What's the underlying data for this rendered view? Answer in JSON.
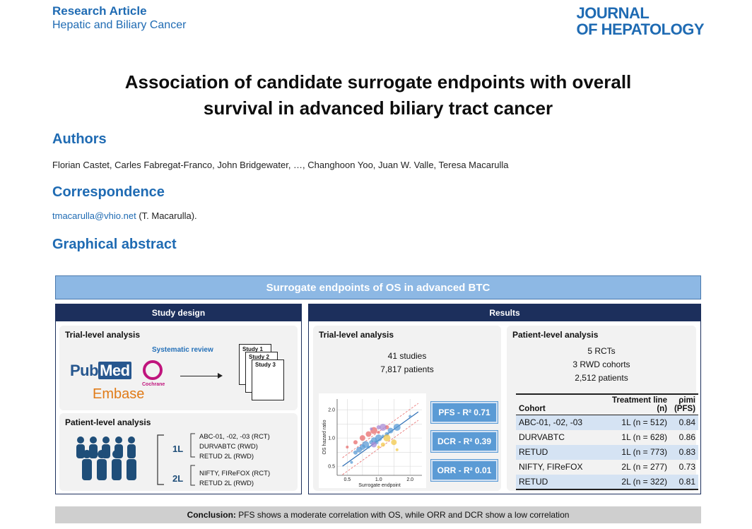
{
  "header": {
    "article_type": "Research Article",
    "section": "Hepatic and Biliary Cancer",
    "journal_line1": "JOURNAL",
    "journal_line2": "OF HEPATOLOGY"
  },
  "title_line1": "Association of candidate surrogate endpoints with overall",
  "title_line2": "survival in advanced biliary tract cancer",
  "authors_heading": "Authors",
  "authors": "Florian Castet, Carles Fabregat-Franco, John Bridgewater, …, Changhoon Yoo, Juan W. Valle, Teresa Macarulla",
  "correspondence_heading": "Correspondence",
  "correspondence_email": "tmacarulla@vhio.net",
  "correspondence_name": " (T. Macarulla).",
  "graphical_abstract_heading": "Graphical abstract",
  "ga": {
    "banner": "Surrogate endpoints of OS in advanced BTC",
    "study_design": {
      "header": "Study design",
      "trial_title": "Trial-level analysis",
      "systematic_review": "Systematic review",
      "pubmed_pub": "Pub",
      "pubmed_med": "Med",
      "cochrane": "Cochrane",
      "embase": "Embase",
      "study_docs": [
        "Study 1",
        "Study 2",
        "Study 3"
      ],
      "patient_title": "Patient-level analysis",
      "line_1l": "1L",
      "line_2l": "2L",
      "cohorts_1l": [
        "ABC-01, -02, -03 (RCT)",
        "DURVABTC (RWD)",
        "RETUD 2L (RWD)"
      ],
      "cohorts_2l": [
        "NIFTY, FIReFOX (RCT)",
        "RETUD 2L (RWD)"
      ]
    },
    "results": {
      "header": "Results",
      "trial_title": "Trial-level analysis",
      "studies": "41 studies",
      "patients": "7,817 patients",
      "pfs": "PFS - R² 0.71",
      "dcr": "DCR - R² 0.39",
      "orr": "ORR - R² 0.01",
      "patient_title": "Patient-level analysis",
      "rcts": "5 RCTs",
      "rwd": "3 RWD cohorts",
      "patients_total": "2,512 patients",
      "table_headers": [
        "Cohort",
        "Treatment line (n)",
        "ρimi (PFS)"
      ],
      "table_rows": [
        [
          "ABC-01, -02, -03",
          "1L (n = 512)",
          "0.84"
        ],
        [
          "DURVABTC",
          "1L (n = 628)",
          "0.86"
        ],
        [
          "RETUD",
          "1L (n = 773)",
          "0.83"
        ],
        [
          "NIFTY, FIReFOX",
          "2L (n = 277)",
          "0.73"
        ],
        [
          "RETUD",
          "2L (n = 322)",
          "0.81"
        ]
      ]
    },
    "conclusion_label": "Conclusion:",
    "conclusion_text": " PFS shows a moderate correlation with OS, while ORR and DCR show a low correlation"
  },
  "chart_data": {
    "type": "scatter",
    "xlabel": "Surrogate endpoint",
    "ylabel": "OS hazard ratio",
    "x_ticks": [
      "0.5",
      "1.0",
      "2.0"
    ],
    "y_ticks": [
      "2.0",
      "1.0",
      "0.5"
    ],
    "scale": "log",
    "grid": true,
    "series": [
      {
        "color": "#5b9bd5",
        "points": [
          [
            0.55,
            0.55
          ],
          [
            0.6,
            0.7
          ],
          [
            0.7,
            0.8
          ],
          [
            0.75,
            0.85
          ],
          [
            0.8,
            0.8
          ],
          [
            0.85,
            0.9
          ],
          [
            0.9,
            0.95
          ],
          [
            1.0,
            1.0
          ],
          [
            1.1,
            1.05
          ],
          [
            1.2,
            1.1
          ],
          [
            1.3,
            1.2
          ],
          [
            1.5,
            1.3
          ],
          [
            2.0,
            1.7
          ],
          [
            0.95,
            0.9
          ],
          [
            0.65,
            0.75
          ]
        ]
      },
      {
        "color": "#e86c6c",
        "points": [
          [
            0.5,
            0.8
          ],
          [
            0.6,
            0.9
          ],
          [
            0.7,
            1.0
          ],
          [
            0.9,
            1.2
          ],
          [
            1.0,
            1.15
          ],
          [
            1.2,
            1.3
          ],
          [
            0.8,
            1.1
          ]
        ]
      },
      {
        "color": "#f2c84b",
        "points": [
          [
            1.0,
            0.8
          ],
          [
            1.1,
            0.85
          ],
          [
            1.4,
            0.9
          ],
          [
            1.2,
            1.0
          ],
          [
            1.5,
            0.75
          ]
        ]
      },
      {
        "color": "#a78bd6",
        "points": [
          [
            0.85,
            1.25
          ],
          [
            1.0,
            1.3
          ],
          [
            0.9,
            0.85
          ],
          [
            1.1,
            1.3
          ]
        ]
      }
    ],
    "fit_line": [
      [
        0.45,
        0.5
      ],
      [
        2.4,
        1.9
      ]
    ]
  }
}
